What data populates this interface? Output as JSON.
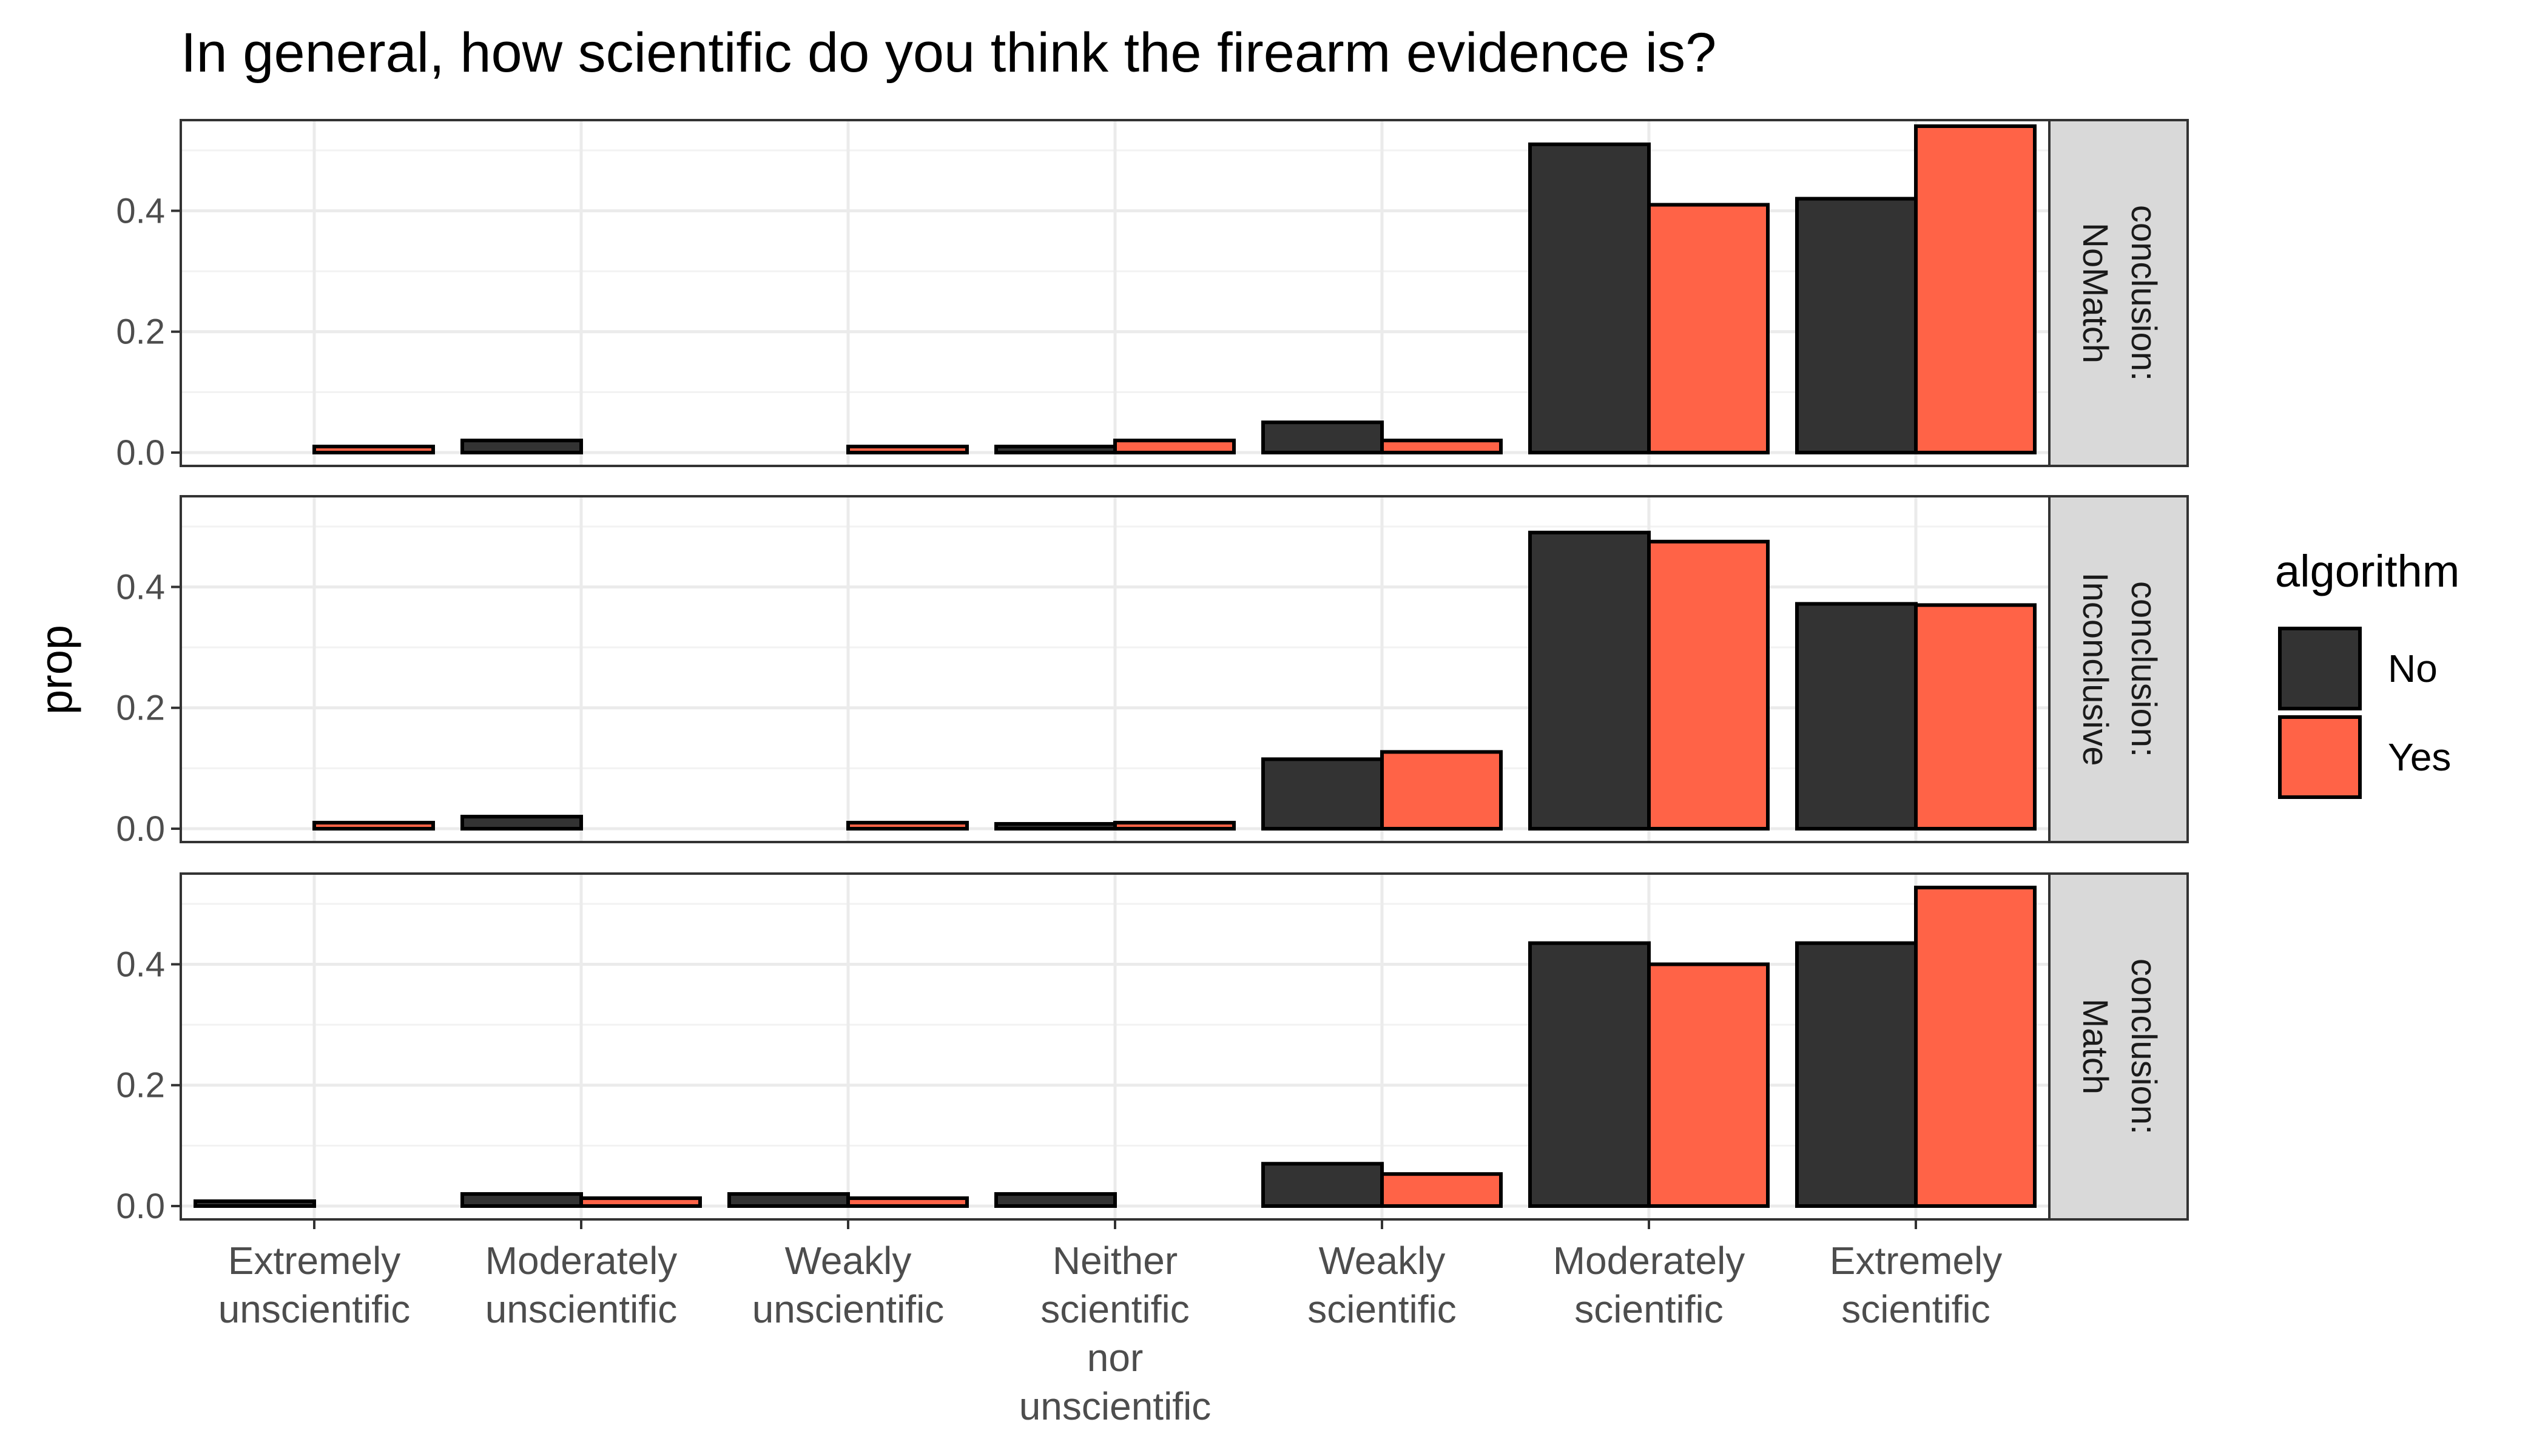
{
  "chart_data": {
    "type": "bar",
    "title": "In general, how scientific do you think the firearm evidence is?",
    "ylabel": "prop",
    "xlabel": "",
    "categories": [
      [
        "Extremely",
        "unscientific"
      ],
      [
        "Moderately",
        "unscientific"
      ],
      [
        "Weakly",
        "unscientific"
      ],
      [
        "Neither",
        "scientific",
        "nor",
        "unscientific"
      ],
      [
        "Weakly",
        "scientific"
      ],
      [
        "Moderately",
        "scientific"
      ],
      [
        "Extremely",
        "scientific"
      ]
    ],
    "ylim": [
      0,
      0.56
    ],
    "yticks": [
      "0.0",
      "0.2",
      "0.4"
    ],
    "ytick_values": [
      0,
      0.2,
      0.4
    ],
    "grid": true,
    "legend": {
      "title": "algorithm",
      "position": "right",
      "entries": [
        {
          "label": "No",
          "color": "#333333"
        },
        {
          "label": "Yes",
          "color": "#FF6347"
        }
      ]
    },
    "facets": [
      {
        "strip": [
          "conclusion:",
          "NoMatch"
        ],
        "series": [
          {
            "name": "No",
            "values": [
              0.0,
              0.02,
              0.0,
              0.01,
              0.05,
              0.51,
              0.42
            ]
          },
          {
            "name": "Yes",
            "values": [
              0.01,
              0.0,
              0.01,
              0.02,
              0.02,
              0.41,
              0.54
            ]
          }
        ]
      },
      {
        "strip": [
          "conclusion:",
          "Inconclusive"
        ],
        "series": [
          {
            "name": "No",
            "values": [
              0.0,
              0.02,
              0.0,
              0.008,
              0.115,
              0.49,
              0.372
            ]
          },
          {
            "name": "Yes",
            "values": [
              0.01,
              0.0,
              0.01,
              0.01,
              0.127,
              0.475,
              0.37
            ]
          }
        ]
      },
      {
        "strip": [
          "conclusion:",
          "Match"
        ],
        "series": [
          {
            "name": "No",
            "values": [
              0.008,
              0.02,
              0.02,
              0.02,
              0.07,
              0.435,
              0.435
            ]
          },
          {
            "name": "Yes",
            "values": [
              0.0,
              0.013,
              0.013,
              0.0,
              0.053,
              0.4,
              0.527
            ]
          }
        ]
      }
    ]
  }
}
